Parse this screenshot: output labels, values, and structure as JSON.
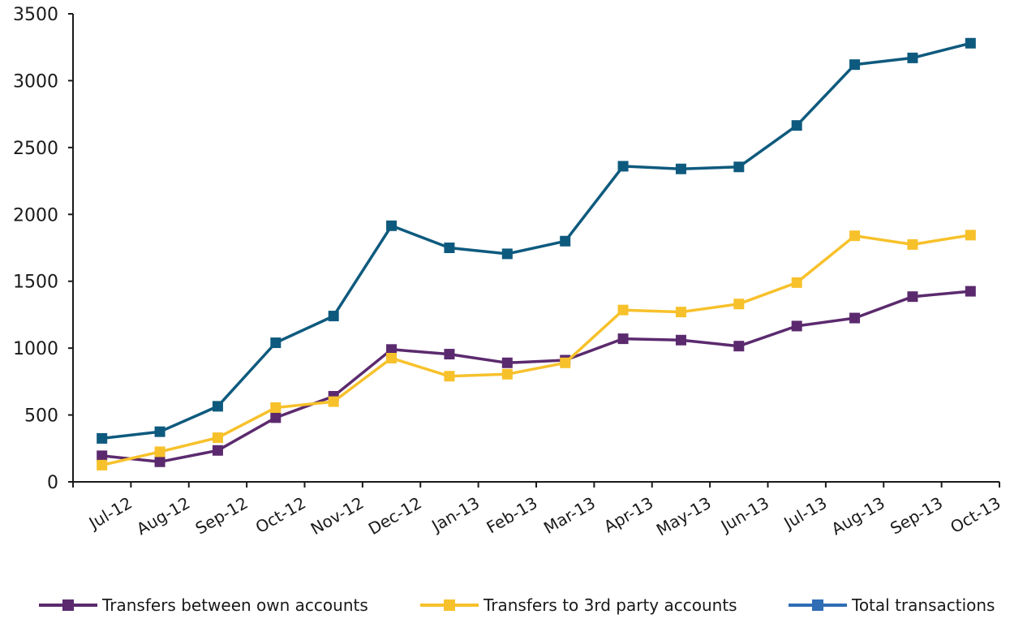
{
  "chart_data": {
    "type": "line",
    "categories": [
      "Jul-12",
      "Aug-12",
      "Sep-12",
      "Oct-12",
      "Nov-12",
      "Dec-12",
      "Jan-13",
      "Feb-13",
      "Mar-13",
      "Apr-13",
      "May-13",
      "Jun-13",
      "Jul-13",
      "Aug-13",
      "Sep-13",
      "Oct-13"
    ],
    "ylim": [
      0,
      3500
    ],
    "yticks": [
      0,
      500,
      1000,
      1500,
      2000,
      2500,
      3000,
      3500
    ],
    "grid": false,
    "legend_position": "bottom",
    "series": [
      {
        "name": "Transfers between own accounts",
        "color": "#5b2a6e",
        "values": [
          195,
          150,
          235,
          480,
          640,
          990,
          955,
          890,
          910,
          1070,
          1060,
          1015,
          1165,
          1225,
          1385,
          1425
        ]
      },
      {
        "name": "Transfers to 3rd party accounts",
        "color": "#f7c12b",
        "values": [
          125,
          225,
          330,
          555,
          600,
          925,
          790,
          805,
          890,
          1285,
          1270,
          1330,
          1490,
          1840,
          1775,
          1845
        ]
      },
      {
        "name": "Total transactions",
        "color": "#0e5a7e",
        "values": [
          325,
          375,
          565,
          1040,
          1240,
          1915,
          1750,
          1705,
          1800,
          2360,
          2340,
          2355,
          2665,
          3120,
          3170,
          3280
        ]
      }
    ]
  }
}
